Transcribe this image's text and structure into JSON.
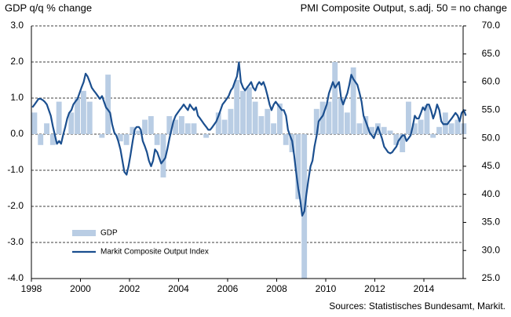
{
  "chart_data": {
    "type": "bar-line",
    "title_left": "GDP q/q % change",
    "title_right": "PMI Composite Output, s.adj. 50 = no change",
    "source": "Sources: Statistisches Bundesamt, Markit.",
    "xlim": [
      1998,
      2015.6
    ],
    "xticks": [
      1998,
      2000,
      2002,
      2004,
      2006,
      2008,
      2010,
      2012,
      2014
    ],
    "ylim": [
      -4,
      3
    ],
    "yticks": [
      {
        "value": -4,
        "label": "-4.0"
      },
      {
        "value": -3,
        "label": "-3.0"
      },
      {
        "value": -2,
        "label": "-2.0"
      },
      {
        "value": -1,
        "label": "-1.0"
      },
      {
        "value": 0,
        "label": "0.0"
      },
      {
        "value": 1,
        "label": "1.0"
      },
      {
        "value": 2,
        "label": "2.0"
      },
      {
        "value": 3,
        "label": "3.0"
      }
    ],
    "y2lim": [
      25,
      70
    ],
    "y2ticks": [
      {
        "value": 25,
        "label": "25.0"
      },
      {
        "value": 30,
        "label": "30.0"
      },
      {
        "value": 35,
        "label": "35.0"
      },
      {
        "value": 40,
        "label": "40.0"
      },
      {
        "value": 45,
        "label": "45.0"
      },
      {
        "value": 50,
        "label": "50.0"
      },
      {
        "value": 55,
        "label": "55.0"
      },
      {
        "value": 60,
        "label": "60.0"
      },
      {
        "value": 65,
        "label": "65.0"
      },
      {
        "value": 70,
        "label": "70.0"
      }
    ],
    "grid": true,
    "legend": "lower left",
    "series": [
      {
        "name": "GDP",
        "type": "bar",
        "color": "#b9cde4",
        "axis": "y",
        "x": [
          1998.125,
          1998.375,
          1998.625,
          1998.875,
          1999.125,
          1999.375,
          1999.625,
          1999.875,
          2000.125,
          2000.375,
          2000.625,
          2000.875,
          2001.125,
          2001.375,
          2001.625,
          2001.875,
          2002.125,
          2002.375,
          2002.625,
          2002.875,
          2003.125,
          2003.375,
          2003.625,
          2003.875,
          2004.125,
          2004.375,
          2004.625,
          2004.875,
          2005.125,
          2005.375,
          2005.625,
          2005.875,
          2006.125,
          2006.375,
          2006.625,
          2006.875,
          2007.125,
          2007.375,
          2007.625,
          2007.875,
          2008.125,
          2008.375,
          2008.625,
          2008.875,
          2009.125,
          2009.375,
          2009.625,
          2009.875,
          2010.125,
          2010.375,
          2010.625,
          2010.875,
          2011.125,
          2011.375,
          2011.625,
          2011.875,
          2012.125,
          2012.375,
          2012.625,
          2012.875,
          2013.125,
          2013.375,
          2013.625,
          2013.875,
          2014.125,
          2014.375,
          2014.625,
          2014.875,
          2015.125,
          2015.375,
          2015.625
        ],
        "values": [
          0.6,
          -0.3,
          0.3,
          -0.3,
          0.9,
          0.0,
          0.6,
          1.0,
          1.2,
          0.9,
          0.0,
          -0.1,
          1.65,
          0.0,
          -0.2,
          -0.3,
          0.2,
          0.1,
          0.4,
          0.5,
          -0.3,
          -1.2,
          0.5,
          0.4,
          0.5,
          0.3,
          0.3,
          0.0,
          -0.1,
          0.0,
          0.6,
          0.4,
          0.7,
          1.5,
          1.2,
          1.3,
          0.9,
          0.5,
          0.7,
          0.3,
          0.85,
          -0.3,
          -0.5,
          -1.8,
          -4.0,
          0.0,
          0.7,
          0.9,
          0.9,
          2.0,
          1.0,
          0.6,
          1.85,
          0.3,
          0.5,
          0.2,
          0.3,
          0.2,
          0.1,
          -0.3,
          -0.5,
          0.9,
          0.3,
          0.4,
          0.8,
          -0.1,
          0.2,
          0.6,
          0.3,
          0.4,
          0.3
        ]
      },
      {
        "name": "Markit Composite Output Index",
        "type": "line",
        "color": "#1b4f8f",
        "axis": "y2",
        "x": [
          1998.04,
          1998.13,
          1998.21,
          1998.29,
          1998.38,
          1998.46,
          1998.54,
          1998.63,
          1998.71,
          1998.79,
          1998.88,
          1998.96,
          1999.04,
          1999.13,
          1999.21,
          1999.29,
          1999.38,
          1999.46,
          1999.54,
          1999.63,
          1999.71,
          1999.79,
          1999.88,
          1999.96,
          2000.04,
          2000.13,
          2000.21,
          2000.29,
          2000.38,
          2000.46,
          2000.54,
          2000.63,
          2000.71,
          2000.79,
          2000.88,
          2000.96,
          2001.04,
          2001.13,
          2001.21,
          2001.29,
          2001.38,
          2001.46,
          2001.54,
          2001.63,
          2001.71,
          2001.79,
          2001.88,
          2001.96,
          2002.04,
          2002.13,
          2002.21,
          2002.29,
          2002.38,
          2002.46,
          2002.54,
          2002.63,
          2002.71,
          2002.79,
          2002.88,
          2002.96,
          2003.04,
          2003.13,
          2003.21,
          2003.29,
          2003.38,
          2003.46,
          2003.54,
          2003.63,
          2003.71,
          2003.79,
          2003.88,
          2003.96,
          2004.04,
          2004.13,
          2004.21,
          2004.29,
          2004.38,
          2004.46,
          2004.54,
          2004.63,
          2004.71,
          2004.79,
          2004.88,
          2004.96,
          2005.04,
          2005.13,
          2005.21,
          2005.29,
          2005.38,
          2005.46,
          2005.54,
          2005.63,
          2005.71,
          2005.79,
          2005.88,
          2005.96,
          2006.04,
          2006.13,
          2006.21,
          2006.29,
          2006.38,
          2006.46,
          2006.54,
          2006.63,
          2006.71,
          2006.79,
          2006.88,
          2006.96,
          2007.04,
          2007.13,
          2007.21,
          2007.29,
          2007.38,
          2007.46,
          2007.54,
          2007.63,
          2007.71,
          2007.79,
          2007.88,
          2007.96,
          2008.04,
          2008.13,
          2008.21,
          2008.29,
          2008.38,
          2008.46,
          2008.54,
          2008.63,
          2008.71,
          2008.79,
          2008.88,
          2008.96,
          2009.04,
          2009.13,
          2009.21,
          2009.29,
          2009.38,
          2009.46,
          2009.54,
          2009.63,
          2009.71,
          2009.79,
          2009.88,
          2009.96,
          2010.04,
          2010.13,
          2010.21,
          2010.29,
          2010.38,
          2010.46,
          2010.54,
          2010.63,
          2010.71,
          2010.79,
          2010.88,
          2010.96,
          2011.04,
          2011.13,
          2011.21,
          2011.29,
          2011.38,
          2011.46,
          2011.54,
          2011.63,
          2011.71,
          2011.79,
          2011.88,
          2011.96,
          2012.04,
          2012.13,
          2012.21,
          2012.29,
          2012.38,
          2012.46,
          2012.54,
          2012.63,
          2012.71,
          2012.79,
          2012.88,
          2012.96,
          2013.04,
          2013.13,
          2013.21,
          2013.29,
          2013.38,
          2013.46,
          2013.54,
          2013.63,
          2013.71,
          2013.79,
          2013.88,
          2013.96,
          2014.04,
          2014.13,
          2014.21,
          2014.29,
          2014.38,
          2014.46,
          2014.54,
          2014.63,
          2014.71,
          2014.79,
          2014.88,
          2014.96,
          2015.04,
          2015.13,
          2015.21,
          2015.29,
          2015.38,
          2015.46,
          2015.54,
          2015.63,
          2015.71
        ],
        "values": [
          55.5,
          56,
          56.5,
          57,
          57,
          56.8,
          56.5,
          56,
          55,
          54,
          52,
          50.5,
          49,
          49.5,
          49,
          50.5,
          52,
          53.5,
          54.5,
          55,
          56,
          56.5,
          57,
          58,
          59,
          60,
          61.5,
          61,
          60,
          59,
          58.5,
          58,
          57.5,
          57,
          57.5,
          56.5,
          55.5,
          55,
          54.5,
          52.5,
          51,
          50.5,
          49.5,
          48,
          46,
          44,
          43.5,
          45,
          47,
          49.5,
          51.5,
          52,
          52,
          51.5,
          49.5,
          48.5,
          47.5,
          46,
          45,
          46,
          48,
          47.5,
          46.5,
          45.5,
          46,
          46.5,
          48,
          50,
          51.5,
          53,
          54,
          54.5,
          55,
          55.5,
          56,
          55.5,
          55,
          56,
          55.5,
          55,
          55.5,
          54,
          53.5,
          53,
          52.5,
          52,
          51.5,
          51.5,
          52,
          52.5,
          53,
          54,
          55,
          56,
          56.5,
          57,
          57.5,
          58.5,
          59,
          60,
          61,
          63.5,
          60,
          59,
          58.5,
          59,
          59.5,
          60,
          59,
          58.5,
          59.5,
          60,
          59.5,
          60,
          59,
          57.5,
          56,
          55,
          56,
          56.5,
          56,
          55.5,
          55,
          55,
          54,
          51.5,
          50.5,
          49.5,
          47,
          44,
          41,
          39,
          36.2,
          37,
          40,
          42.5,
          45,
          46,
          48.5,
          50.5,
          53,
          53.5,
          54,
          55,
          56,
          58,
          59,
          60,
          59,
          59.5,
          60,
          57,
          56,
          57,
          58,
          59.5,
          61.3,
          60.5,
          60,
          59.5,
          58,
          56.5,
          54,
          53,
          52,
          51,
          50.5,
          50,
          51,
          52,
          51,
          50,
          48.5,
          48,
          47.5,
          47.3,
          47.5,
          48,
          48.5,
          49.5,
          50,
          50.5,
          50.5,
          49.5,
          50,
          50.5,
          52,
          54,
          53.5,
          53.5,
          54.5,
          55.5,
          55,
          56,
          56,
          55,
          53.5,
          54.5,
          56,
          55,
          53,
          52.5,
          52.5,
          52.5,
          53,
          53.5,
          54,
          54.5,
          54,
          53,
          54.5,
          55,
          54
        ]
      }
    ]
  }
}
